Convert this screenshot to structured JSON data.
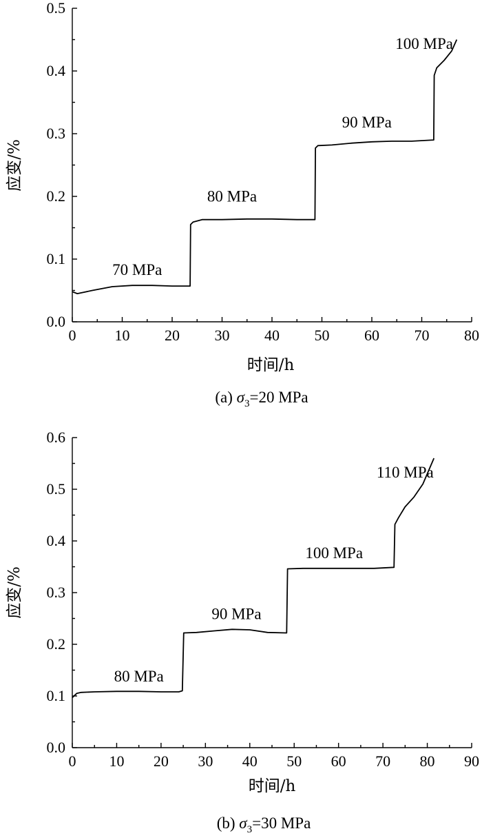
{
  "chart_data": [
    {
      "type": "line",
      "caption": {
        "prefix": "(a) ",
        "sigma": "σ",
        "sub": "3",
        "rest": "=20 MPa"
      },
      "xlabel": "时间/h",
      "ylabel": "应变/%",
      "xlim": [
        0,
        80
      ],
      "ylim": [
        0,
        0.5
      ],
      "xticks": [
        "0",
        "10",
        "20",
        "30",
        "40",
        "50",
        "60",
        "70",
        "80"
      ],
      "yticks": [
        "0.0",
        "0.1",
        "0.2",
        "0.3",
        "0.4",
        "0.5"
      ],
      "annotations": [
        {
          "text": "70 MPa",
          "x": 13,
          "y": 0.075
        },
        {
          "text": "80 MPa",
          "x": 32,
          "y": 0.192
        },
        {
          "text": "90 MPa",
          "x": 59,
          "y": 0.31
        },
        {
          "text": "100 MPa",
          "x": 70.5,
          "y": 0.435
        }
      ],
      "series": [
        {
          "x": [
            0,
            1,
            4,
            8,
            12,
            16,
            20,
            23.6,
            23.7,
            24.2,
            26,
            30,
            35,
            40,
            45,
            48.6,
            48.7,
            49.2,
            52,
            56,
            60,
            64,
            68,
            72.4,
            72.5,
            73,
            74.5,
            76,
            77
          ],
          "y": [
            0.048,
            0.045,
            0.05,
            0.056,
            0.058,
            0.058,
            0.057,
            0.057,
            0.155,
            0.159,
            0.163,
            0.163,
            0.164,
            0.164,
            0.163,
            0.163,
            0.277,
            0.281,
            0.282,
            0.285,
            0.287,
            0.288,
            0.288,
            0.29,
            0.393,
            0.405,
            0.417,
            0.432,
            0.45
          ]
        }
      ]
    },
    {
      "type": "line",
      "caption": {
        "prefix": "(b) ",
        "sigma": "σ",
        "sub": "3",
        "rest": "=30 MPa"
      },
      "xlabel": "时间/h",
      "ylabel": "应变/%",
      "xlim": [
        0,
        90
      ],
      "ylim": [
        0,
        0.6
      ],
      "xticks": [
        "0",
        "10",
        "20",
        "30",
        "40",
        "50",
        "60",
        "70",
        "80",
        "90"
      ],
      "yticks": [
        "0.0",
        "0.1",
        "0.2",
        "0.3",
        "0.4",
        "0.5",
        "0.6"
      ],
      "annotations": [
        {
          "text": "80 MPa",
          "x": 15,
          "y": 0.128
        },
        {
          "text": "90 MPa",
          "x": 37,
          "y": 0.249
        },
        {
          "text": "100 MPa",
          "x": 59,
          "y": 0.367
        },
        {
          "text": "110 MPa",
          "x": 75,
          "y": 0.523
        }
      ],
      "series": [
        {
          "x": [
            0,
            1,
            2,
            5,
            10,
            15,
            20,
            24,
            24.8,
            25.1,
            28,
            32,
            36,
            40,
            44,
            48.3,
            48.5,
            52,
            60,
            68,
            72.5,
            72.7,
            73.5,
            75,
            77,
            79,
            81.5
          ],
          "y": [
            0.097,
            0.105,
            0.107,
            0.108,
            0.109,
            0.109,
            0.108,
            0.108,
            0.11,
            0.222,
            0.223,
            0.226,
            0.229,
            0.228,
            0.223,
            0.222,
            0.346,
            0.347,
            0.347,
            0.347,
            0.349,
            0.432,
            0.445,
            0.466,
            0.485,
            0.51,
            0.56
          ]
        }
      ]
    }
  ]
}
